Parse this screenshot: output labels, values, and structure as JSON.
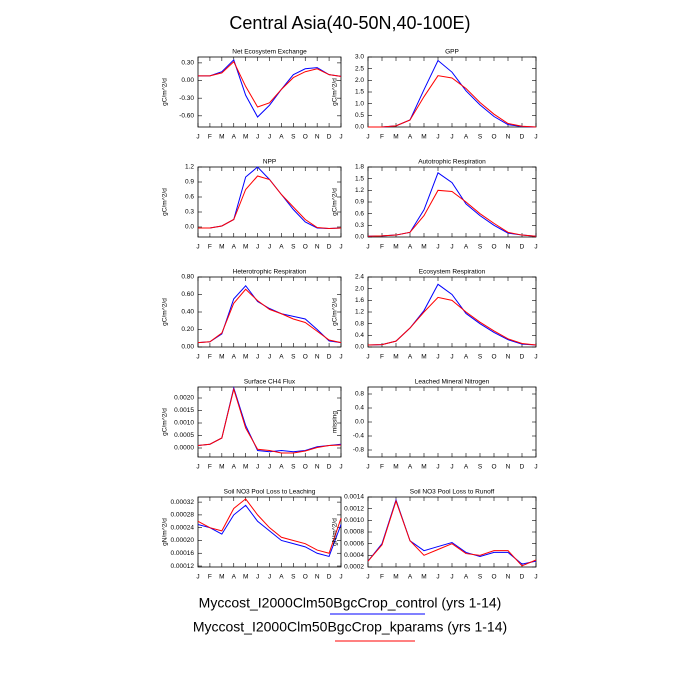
{
  "title": "Central Asia(40-50N,40-100E)",
  "legend": [
    {
      "name": "Myccost_I2000Clm50BgcCrop_control (yrs 1-14)",
      "color": "#0000ff"
    },
    {
      "name": "Myccost_I2000Clm50BgcCrop_kparams (yrs 1-14)",
      "color": "#ff0000"
    }
  ],
  "chart_data": [
    {
      "type": "line",
      "title": "Net Ecosystem Exchange",
      "y_label": "gC/m^2/d",
      "categories": [
        "J",
        "F",
        "M",
        "A",
        "M",
        "J",
        "J",
        "A",
        "S",
        "O",
        "N",
        "D",
        "J"
      ],
      "ylim": [
        -0.79,
        0.4
      ],
      "yticks": [
        {
          "value": 0.3,
          "label": "0.30"
        },
        {
          "value": 0,
          "label": "0.00"
        },
        {
          "value": -0.3,
          "label": "-0.30"
        },
        {
          "value": -0.6,
          "label": "-0.60"
        }
      ],
      "series": [
        {
          "values": [
            0.08,
            0.08,
            0.15,
            0.35,
            -0.25,
            -0.62,
            -0.42,
            -0.15,
            0.1,
            0.2,
            0.22,
            0.1,
            0.07
          ]
        },
        {
          "values": [
            0.08,
            0.08,
            0.13,
            0.32,
            -0.1,
            -0.45,
            -0.38,
            -0.15,
            0.05,
            0.15,
            0.2,
            0.1,
            0.07
          ]
        }
      ]
    },
    {
      "type": "line",
      "title": "GPP",
      "y_label": "gC/m^2/d",
      "categories": [
        "J",
        "F",
        "M",
        "A",
        "M",
        "J",
        "J",
        "A",
        "S",
        "O",
        "N",
        "D",
        "J"
      ],
      "ylim": [
        0,
        3.0
      ],
      "yticks": [
        {
          "value": 0,
          "label": "0.0"
        },
        0.5,
        {
          "value": 1,
          "label": "1.0"
        },
        1.5,
        {
          "value": 2,
          "label": "2.0"
        },
        2.5,
        {
          "value": 3,
          "label": "3.0"
        }
      ],
      "series": [
        {
          "values": [
            0,
            0,
            0.05,
            0.3,
            1.6,
            2.85,
            2.35,
            1.55,
            0.95,
            0.45,
            0.1,
            0.02,
            0
          ]
        },
        {
          "values": [
            0,
            0,
            0.05,
            0.3,
            1.3,
            2.2,
            2.1,
            1.65,
            1.05,
            0.55,
            0.15,
            0.03,
            0
          ]
        }
      ]
    },
    {
      "type": "line",
      "title": "NPP",
      "y_label": "gC/m^2/d",
      "categories": [
        "J",
        "F",
        "M",
        "A",
        "M",
        "J",
        "J",
        "A",
        "S",
        "O",
        "N",
        "D",
        "J"
      ],
      "ylim": [
        -0.2,
        1.2
      ],
      "yticks": [
        {
          "value": 0,
          "label": "0.0"
        },
        0.3,
        0.6,
        0.9,
        1.2
      ],
      "series": [
        {
          "values": [
            -0.02,
            -0.02,
            0.02,
            0.15,
            1.0,
            1.2,
            0.95,
            0.65,
            0.35,
            0.1,
            -0.02,
            -0.03,
            -0.02
          ]
        },
        {
          "values": [
            -0.02,
            -0.02,
            0.02,
            0.15,
            0.75,
            1.02,
            0.95,
            0.65,
            0.4,
            0.15,
            -0.01,
            -0.03,
            -0.02
          ]
        }
      ]
    },
    {
      "type": "line",
      "title": "Autotrophic Respiration",
      "y_label": "gC/m^2/d",
      "categories": [
        "J",
        "F",
        "M",
        "A",
        "M",
        "J",
        "J",
        "A",
        "S",
        "O",
        "N",
        "D",
        "J"
      ],
      "ylim": [
        0,
        1.8
      ],
      "yticks": [
        {
          "value": 0,
          "label": "0.0"
        },
        0.3,
        0.6,
        0.9,
        1.2,
        1.5,
        1.8
      ],
      "series": [
        {
          "values": [
            0.02,
            0.03,
            0.05,
            0.12,
            0.7,
            1.65,
            1.4,
            0.85,
            0.55,
            0.3,
            0.1,
            0.05,
            0.02
          ]
        },
        {
          "values": [
            0.02,
            0.03,
            0.05,
            0.12,
            0.55,
            1.2,
            1.17,
            0.9,
            0.6,
            0.35,
            0.12,
            0.05,
            0.02
          ]
        }
      ]
    },
    {
      "type": "line",
      "title": "Heterotrophic Respiration",
      "y_label": "gC/m^2/d",
      "categories": [
        "J",
        "F",
        "M",
        "A",
        "M",
        "J",
        "J",
        "A",
        "S",
        "O",
        "N",
        "D",
        "J"
      ],
      "ylim": [
        0,
        0.8
      ],
      "yticks": [
        {
          "value": 0,
          "label": "0.00"
        },
        {
          "value": 0.2,
          "label": "0.20"
        },
        {
          "value": 0.4,
          "label": "0.40"
        },
        {
          "value": 0.6,
          "label": "0.60"
        },
        {
          "value": 0.8,
          "label": "0.80"
        }
      ],
      "series": [
        {
          "values": [
            0.05,
            0.06,
            0.15,
            0.55,
            0.7,
            0.52,
            0.44,
            0.38,
            0.35,
            0.32,
            0.2,
            0.07,
            0.05
          ]
        },
        {
          "values": [
            0.05,
            0.06,
            0.16,
            0.5,
            0.66,
            0.53,
            0.43,
            0.38,
            0.32,
            0.28,
            0.18,
            0.08,
            0.05
          ]
        }
      ]
    },
    {
      "type": "line",
      "title": "Ecosystem Respiration",
      "y_label": "gC/m^2/d",
      "categories": [
        "J",
        "F",
        "M",
        "A",
        "M",
        "J",
        "J",
        "A",
        "S",
        "O",
        "N",
        "D",
        "J"
      ],
      "ylim": [
        0,
        2.4
      ],
      "yticks": [
        {
          "value": 0,
          "label": "0.0"
        },
        0.4,
        0.8,
        1.2,
        1.6,
        {
          "value": 2,
          "label": "2.0"
        },
        2.4
      ],
      "series": [
        {
          "values": [
            0.07,
            0.08,
            0.2,
            0.65,
            1.25,
            2.15,
            1.8,
            1.15,
            0.8,
            0.5,
            0.25,
            0.1,
            0.07
          ]
        },
        {
          "values": [
            0.07,
            0.08,
            0.2,
            0.65,
            1.2,
            1.7,
            1.6,
            1.2,
            0.85,
            0.55,
            0.28,
            0.12,
            0.07
          ]
        }
      ]
    },
    {
      "type": "line",
      "title": "Surface CH4 Flux",
      "y_label": "gC/m^2/d",
      "categories": [
        "J",
        "F",
        "M",
        "A",
        "M",
        "J",
        "J",
        "A",
        "S",
        "O",
        "N",
        "D",
        "J"
      ],
      "ylim": [
        -0.00036,
        0.00244
      ],
      "yticks": [
        {
          "value": 0,
          "label": "0.0000"
        },
        0.0005,
        {
          "value": 0.001,
          "label": "0.0010"
        },
        0.0015,
        {
          "value": 0.002,
          "label": "0.0020"
        }
      ],
      "series": [
        {
          "values": [
            0.0001,
            0.00015,
            0.0004,
            0.0024,
            0.0009,
            -0.0001,
            -0.00015,
            -0.0001,
            -0.00015,
            -0.0001,
            5e-05,
            0.0001,
            0.00015
          ]
        },
        {
          "values": [
            0.0001,
            0.00015,
            0.0004,
            0.00235,
            0.0008,
            -5e-05,
            -0.0001,
            -0.0002,
            -0.0002,
            -0.00012,
            2e-05,
            0.0001,
            0.00012
          ]
        }
      ]
    },
    {
      "type": "line",
      "title": "Leached Mineral Nitrogen",
      "y_label": "missing",
      "categories": [
        "J",
        "F",
        "M",
        "A",
        "M",
        "J",
        "J",
        "A",
        "S",
        "O",
        "N",
        "D",
        "J"
      ],
      "ylim": [
        -1,
        1
      ],
      "yticks": [
        0.8,
        0.4,
        {
          "value": 0,
          "label": "0.0"
        },
        -0.4,
        -0.8
      ],
      "series": []
    },
    {
      "type": "line",
      "title": "Soil NO3 Pool Loss to Leaching",
      "y_label": "gN/m^2/d",
      "categories": [
        "J",
        "F",
        "M",
        "A",
        "M",
        "J",
        "J",
        "A",
        "S",
        "O",
        "N",
        "D",
        "J"
      ],
      "ylim": [
        0.000117,
        0.000336
      ],
      "yticks": [
        0.00012,
        0.00016,
        {
          "value": 0.0002,
          "label": "0.00020"
        },
        0.00024,
        0.00028,
        0.00032
      ],
      "series": [
        {
          "values": [
            0.00025,
            0.00024,
            0.00022,
            0.00028,
            0.00031,
            0.00026,
            0.00023,
            0.0002,
            0.00019,
            0.00018,
            0.00016,
            0.00015,
            0.00025
          ]
        },
        {
          "values": [
            0.00026,
            0.00024,
            0.00023,
            0.0003,
            0.00033,
            0.00028,
            0.00024,
            0.00021,
            0.0002,
            0.00019,
            0.00017,
            0.00016,
            0.00027
          ]
        }
      ]
    },
    {
      "type": "line",
      "title": "Soil NO3 Pool Loss to Runoff",
      "y_label": "gN/m^2/d",
      "categories": [
        "J",
        "F",
        "M",
        "A",
        "M",
        "J",
        "J",
        "A",
        "S",
        "O",
        "N",
        "D",
        "J"
      ],
      "ylim": [
        0.0002,
        0.0014
      ],
      "yticks": [
        0.0002,
        0.0004,
        0.0006,
        0.0008,
        {
          "value": 0.001,
          "label": "0.0010"
        },
        0.0012,
        0.0014
      ],
      "series": [
        {
          "values": [
            0.0003,
            0.0006,
            0.00135,
            0.00065,
            0.00048,
            0.00055,
            0.00062,
            0.00045,
            0.00038,
            0.00045,
            0.00045,
            0.00025,
            0.0003
          ]
        },
        {
          "values": [
            0.0003,
            0.00058,
            0.00133,
            0.00065,
            0.0004,
            0.0005,
            0.0006,
            0.00043,
            0.0004,
            0.00048,
            0.00048,
            0.00022,
            0.00032
          ]
        }
      ]
    }
  ]
}
